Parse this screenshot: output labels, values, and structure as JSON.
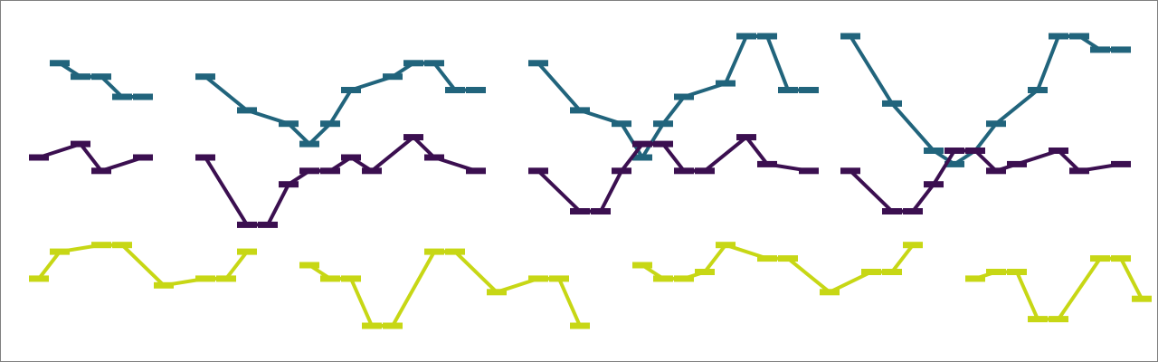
{
  "chart_data": {
    "type": "line",
    "title": "",
    "xlabel": "",
    "ylabel": "",
    "axes_visible": false,
    "grid": false,
    "legend": "none",
    "x_range": [
      0,
      54
    ],
    "y_range": [
      0,
      54
    ],
    "series": [
      {
        "color": "#21647c",
        "segments": [
          {
            "points": [
              [
                3,
                45
              ],
              [
                4,
                43
              ],
              [
                5,
                43
              ],
              [
                6,
                40
              ],
              [
                7,
                40
              ]
            ]
          },
          {
            "points": [
              [
                10,
                43
              ],
              [
                12,
                38
              ],
              [
                14,
                36
              ],
              [
                15,
                33
              ],
              [
                16,
                36
              ],
              [
                17,
                41
              ],
              [
                19,
                43
              ],
              [
                20,
                45
              ],
              [
                21,
                45
              ],
              [
                22,
                41
              ],
              [
                23,
                41
              ]
            ]
          },
          {
            "points": [
              [
                26,
                45
              ],
              [
                28,
                38
              ],
              [
                30,
                36
              ],
              [
                31,
                31
              ],
              [
                32,
                36
              ],
              [
                33,
                40
              ],
              [
                35,
                42
              ],
              [
                36,
                49
              ],
              [
                37,
                49
              ],
              [
                38,
                41
              ],
              [
                39,
                41
              ]
            ]
          },
          {
            "points": [
              [
                41,
                49
              ],
              [
                43,
                39
              ],
              [
                45,
                32
              ],
              [
                46,
                30
              ],
              [
                47,
                32
              ],
              [
                48,
                36
              ],
              [
                50,
                41
              ],
              [
                51,
                49
              ],
              [
                52,
                49
              ],
              [
                53,
                47
              ],
              [
                54,
                47
              ]
            ]
          }
        ]
      },
      {
        "color": "#3b0f50",
        "segments": [
          {
            "points": [
              [
                2,
                31
              ],
              [
                4,
                33
              ],
              [
                5,
                29
              ],
              [
                7,
                31
              ]
            ]
          },
          {
            "points": [
              [
                10,
                31
              ],
              [
                12,
                21
              ],
              [
                13,
                21
              ],
              [
                14,
                27
              ],
              [
                15,
                29
              ],
              [
                16,
                29
              ],
              [
                17,
                31
              ],
              [
                18,
                29
              ],
              [
                20,
                34
              ],
              [
                21,
                31
              ],
              [
                23,
                29
              ]
            ]
          },
          {
            "points": [
              [
                26,
                29
              ],
              [
                28,
                23
              ],
              [
                29,
                23
              ],
              [
                30,
                29
              ],
              [
                31,
                33
              ],
              [
                32,
                33
              ],
              [
                33,
                29
              ],
              [
                34,
                29
              ],
              [
                36,
                34
              ],
              [
                37,
                30
              ],
              [
                39,
                29
              ]
            ]
          },
          {
            "points": [
              [
                41,
                29
              ],
              [
                43,
                23
              ],
              [
                44,
                23
              ],
              [
                45,
                27
              ],
              [
                46,
                32
              ],
              [
                47,
                32
              ],
              [
                48,
                29
              ],
              [
                49,
                30
              ],
              [
                51,
                32
              ],
              [
                52,
                29
              ],
              [
                54,
                30
              ]
            ]
          }
        ]
      },
      {
        "color": "#c7d715",
        "segments": [
          {
            "points": [
              [
                2,
                13
              ],
              [
                3,
                17
              ],
              [
                5,
                18
              ],
              [
                6,
                18
              ],
              [
                8,
                12
              ],
              [
                10,
                13
              ],
              [
                11,
                13
              ],
              [
                12,
                17
              ]
            ]
          },
          {
            "points": [
              [
                15,
                15
              ],
              [
                16,
                13
              ],
              [
                17,
                13
              ],
              [
                18,
                6
              ],
              [
                19,
                6
              ],
              [
                21,
                17
              ],
              [
                22,
                17
              ],
              [
                24,
                11
              ],
              [
                26,
                13
              ],
              [
                27,
                13
              ],
              [
                28,
                6
              ]
            ]
          },
          {
            "points": [
              [
                31,
                15
              ],
              [
                32,
                13
              ],
              [
                33,
                13
              ],
              [
                34,
                14
              ],
              [
                35,
                18
              ],
              [
                37,
                16
              ],
              [
                38,
                16
              ],
              [
                40,
                11
              ],
              [
                42,
                14
              ],
              [
                43,
                14
              ],
              [
                44,
                18
              ]
            ]
          },
          {
            "points": [
              [
                47,
                13
              ],
              [
                48,
                14
              ],
              [
                49,
                14
              ],
              [
                50,
                7
              ],
              [
                51,
                7
              ],
              [
                53,
                16
              ],
              [
                54,
                16
              ],
              [
                55,
                10
              ]
            ]
          }
        ]
      }
    ]
  }
}
